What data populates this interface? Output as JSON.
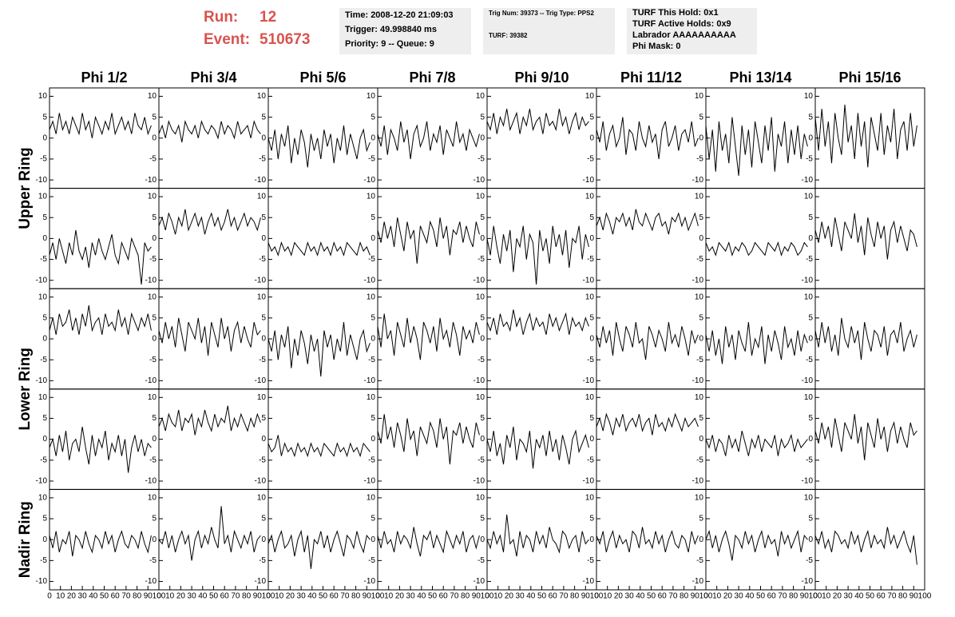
{
  "header": {
    "run_label": "Run:",
    "run": 12,
    "event_label": "Event:",
    "event": 510673,
    "box1": [
      "Time: 2008-12-20 21:09:03",
      "Trigger: 49.998840 ms",
      "Priority: 9 -- Queue: 9"
    ],
    "box2": [
      "Trig Num: 39373 -- Trig Type: PPS2",
      "TURF: 39382"
    ],
    "box3": [
      "TURF This Hold: 0x1",
      "TURF Active Holds: 0x9",
      "Labrador AAAAAAAAAA",
      "Phi Mask: 0"
    ]
  },
  "chart_data": {
    "type": "line",
    "color": "#000000",
    "columns": [
      "Phi 1/2",
      "Phi 3/4",
      "Phi 5/6",
      "Phi 7/8",
      "Phi 9/10",
      "Phi 11/12",
      "Phi 13/14",
      "Phi 15/16"
    ],
    "row_labels": [
      "Upper Ring",
      "Lower Ring",
      "Nadir Ring"
    ],
    "xlim": [
      0,
      100
    ],
    "ylim": [
      -12,
      12
    ],
    "xticks": [
      0,
      10,
      20,
      30,
      40,
      50,
      60,
      70,
      80,
      90,
      100
    ],
    "yticks": [
      -10,
      -5,
      0,
      5,
      10
    ],
    "x": [
      0,
      3,
      6,
      9,
      12,
      15,
      18,
      21,
      24,
      27,
      30,
      33,
      36,
      39,
      42,
      45,
      48,
      51,
      54,
      57,
      60,
      63,
      66,
      69,
      72,
      75,
      78,
      81,
      84,
      87,
      90,
      93
    ],
    "rows": [
      [
        [
          2,
          4,
          1,
          6,
          2,
          4,
          1,
          5,
          3,
          1,
          6,
          2,
          4,
          0,
          5,
          3,
          1,
          4,
          2,
          6,
          1,
          3,
          5,
          2,
          4,
          1,
          6,
          3,
          2,
          5,
          1,
          3
        ],
        [
          1,
          3,
          0,
          4,
          2,
          1,
          3,
          -1,
          4,
          2,
          1,
          3,
          0,
          4,
          2,
          1,
          3,
          2,
          0,
          4,
          1,
          3,
          2,
          0,
          4,
          1,
          2,
          3,
          0,
          4,
          2,
          1
        ],
        [
          0,
          -3,
          2,
          -5,
          1,
          -2,
          3,
          -6,
          0,
          -4,
          2,
          -1,
          -7,
          1,
          -3,
          0,
          -5,
          2,
          -2,
          1,
          -6,
          0,
          -3,
          3,
          -4,
          1,
          -2,
          -5,
          0,
          2,
          -3,
          -1
        ],
        [
          1,
          -2,
          3,
          -4,
          2,
          0,
          -3,
          4,
          -1,
          2,
          -5,
          1,
          3,
          -2,
          0,
          4,
          -3,
          1,
          -1,
          3,
          -4,
          2,
          0,
          -2,
          4,
          -1,
          1,
          -3,
          2,
          0,
          -2,
          1
        ],
        [
          4,
          2,
          6,
          1,
          5,
          3,
          7,
          2,
          4,
          6,
          1,
          5,
          3,
          7,
          2,
          4,
          5,
          1,
          6,
          3,
          4,
          2,
          7,
          3,
          5,
          1,
          4,
          6,
          2,
          5,
          3,
          4
        ],
        [
          2,
          -1,
          4,
          -3,
          1,
          3,
          -2,
          0,
          5,
          -4,
          2,
          1,
          -3,
          4,
          0,
          -2,
          3,
          -1,
          1,
          -5,
          2,
          4,
          -2,
          0,
          3,
          -3,
          1,
          2,
          -1,
          4,
          -2,
          0
        ],
        [
          3,
          -5,
          2,
          -8,
          4,
          -3,
          1,
          -6,
          5,
          -2,
          -9,
          3,
          -4,
          2,
          -7,
          4,
          -1,
          -6,
          3,
          -3,
          5,
          -8,
          1,
          -2,
          4,
          -6,
          2,
          -4,
          3,
          -5,
          1,
          -2
        ],
        [
          5,
          -3,
          7,
          -2,
          4,
          -6,
          6,
          0,
          -4,
          8,
          -1,
          3,
          -5,
          6,
          -2,
          4,
          -7,
          5,
          1,
          -3,
          6,
          -4,
          3,
          -1,
          7,
          -5,
          2,
          4,
          -3,
          6,
          -2,
          3
        ]
      ],
      [
        [
          -4,
          -1,
          -5,
          0,
          -3,
          -6,
          -1,
          -4,
          2,
          -3,
          -5,
          -2,
          -7,
          -1,
          -4,
          0,
          -3,
          -5,
          -2,
          1,
          -4,
          -6,
          -1,
          -3,
          -5,
          0,
          -2,
          -4,
          -11,
          -1,
          -3,
          -2
        ],
        [
          3,
          5,
          2,
          6,
          4,
          1,
          5,
          3,
          7,
          2,
          4,
          6,
          3,
          5,
          1,
          4,
          6,
          3,
          5,
          2,
          4,
          7,
          3,
          5,
          2,
          4,
          6,
          3,
          5,
          4,
          2,
          5
        ],
        [
          -1,
          -3,
          -2,
          -4,
          -1,
          -3,
          -2,
          -4,
          -1,
          -2,
          -3,
          -4,
          -1,
          -3,
          -2,
          -4,
          -1,
          -3,
          -2,
          -4,
          -1,
          -3,
          -2,
          -4,
          -1,
          -2,
          -3,
          -4,
          -1,
          -3,
          -2,
          -4
        ],
        [
          2,
          -1,
          4,
          0,
          3,
          -2,
          5,
          1,
          -3,
          4,
          0,
          2,
          -6,
          3,
          1,
          -1,
          4,
          2,
          -2,
          5,
          0,
          3,
          -4,
          2,
          1,
          4,
          -1,
          3,
          0,
          -2,
          4,
          1
        ],
        [
          0,
          -4,
          3,
          -2,
          -6,
          1,
          -3,
          2,
          -8,
          0,
          -2,
          3,
          -5,
          1,
          -1,
          -11,
          2,
          -3,
          0,
          -6,
          3,
          -2,
          1,
          -4,
          2,
          -7,
          0,
          -1,
          3,
          -5,
          1,
          -2
        ],
        [
          3,
          5,
          2,
          6,
          4,
          1,
          5,
          4,
          6,
          3,
          5,
          2,
          7,
          4,
          3,
          6,
          4,
          2,
          5,
          6,
          3,
          4,
          1,
          5,
          4,
          6,
          3,
          5,
          2,
          4,
          6,
          3
        ],
        [
          -1,
          -3,
          -2,
          -4,
          -1,
          -2,
          -3,
          -1,
          -4,
          -2,
          -3,
          -1,
          -2,
          -4,
          -3,
          -1,
          -2,
          -3,
          -4,
          -1,
          -2,
          -3,
          -1,
          -4,
          -2,
          -3,
          -1,
          -2,
          -4,
          -3,
          -1,
          -2
        ],
        [
          2,
          -1,
          4,
          0,
          3,
          -2,
          5,
          1,
          -3,
          4,
          2,
          0,
          6,
          -1,
          3,
          -4,
          5,
          1,
          -2,
          4,
          0,
          3,
          -5,
          2,
          4,
          -1,
          3,
          0,
          -3,
          2,
          1,
          -2
        ]
      ],
      [
        [
          2,
          5,
          1,
          6,
          3,
          4,
          7,
          2,
          5,
          1,
          6,
          3,
          8,
          2,
          4,
          5,
          1,
          6,
          3,
          4,
          2,
          7,
          3,
          5,
          1,
          6,
          4,
          2,
          5,
          3,
          6,
          2
        ],
        [
          2,
          -1,
          4,
          0,
          3,
          -2,
          5,
          1,
          -3,
          4,
          2,
          0,
          5,
          -1,
          3,
          -4,
          4,
          1,
          -2,
          5,
          0,
          3,
          -3,
          2,
          4,
          -1,
          3,
          0,
          -2,
          4,
          1,
          2
        ],
        [
          0,
          -3,
          2,
          -5,
          1,
          -2,
          3,
          -7,
          0,
          -4,
          2,
          -1,
          -6,
          1,
          -3,
          0,
          -9,
          2,
          -2,
          1,
          -5,
          0,
          -3,
          4,
          -4,
          1,
          -2,
          -5,
          0,
          2,
          -3,
          -1
        ],
        [
          3,
          -2,
          6,
          0,
          2,
          -4,
          4,
          1,
          -2,
          5,
          -1,
          3,
          0,
          -5,
          4,
          2,
          -1,
          3,
          -3,
          5,
          0,
          2,
          -2,
          4,
          1,
          -4,
          3,
          0,
          2,
          -1,
          4,
          1
        ],
        [
          4,
          2,
          5,
          1,
          6,
          3,
          4,
          2,
          7,
          3,
          5,
          1,
          4,
          6,
          2,
          5,
          3,
          4,
          1,
          6,
          3,
          5,
          2,
          4,
          6,
          1,
          5,
          3,
          4,
          2,
          5,
          3
        ],
        [
          1,
          -2,
          3,
          -1,
          2,
          -4,
          4,
          0,
          -3,
          3,
          1,
          -2,
          4,
          -1,
          0,
          -5,
          3,
          1,
          -2,
          2,
          0,
          -3,
          4,
          -1,
          1,
          -2,
          3,
          0,
          -4,
          2,
          -1,
          1
        ],
        [
          1,
          -3,
          2,
          -4,
          0,
          -6,
          3,
          -2,
          1,
          -5,
          2,
          -1,
          -3,
          4,
          -4,
          0,
          -2,
          3,
          -6,
          1,
          -3,
          2,
          -1,
          -5,
          3,
          -2,
          0,
          -4,
          2,
          -3,
          1,
          -1
        ],
        [
          2,
          -2,
          4,
          -1,
          3,
          -3,
          1,
          -4,
          5,
          0,
          -2,
          3,
          -1,
          2,
          -5,
          4,
          0,
          -3,
          2,
          1,
          -2,
          3,
          -4,
          1,
          2,
          -1,
          4,
          -3,
          0,
          2,
          -2,
          1
        ]
      ],
      [
        [
          -2,
          0,
          -4,
          1,
          -3,
          2,
          -5,
          -1,
          0,
          -3,
          3,
          -2,
          -6,
          1,
          -4,
          0,
          -2,
          2,
          -5,
          -1,
          -3,
          1,
          -4,
          0,
          -8,
          -2,
          1,
          -3,
          0,
          -4,
          -1,
          -2
        ],
        [
          3,
          5,
          2,
          6,
          4,
          3,
          7,
          2,
          5,
          4,
          6,
          1,
          5,
          3,
          7,
          4,
          2,
          6,
          3,
          5,
          4,
          8,
          2,
          5,
          3,
          6,
          4,
          2,
          5,
          3,
          6,
          4
        ],
        [
          -1,
          -3,
          -2,
          1,
          -4,
          -1,
          -3,
          -2,
          -4,
          -1,
          -3,
          -2,
          -4,
          -1,
          -3,
          -2,
          -4,
          -1,
          -2,
          -3,
          -4,
          -1,
          -3,
          -2,
          -4,
          -1,
          -3,
          -2,
          -4,
          -1,
          -2,
          -3
        ],
        [
          2,
          -1,
          6,
          0,
          3,
          -2,
          4,
          1,
          -3,
          5,
          0,
          2,
          -4,
          3,
          1,
          -1,
          4,
          2,
          -2,
          5,
          0,
          3,
          -6,
          2,
          1,
          4,
          -1,
          3,
          0,
          -2,
          4,
          1
        ],
        [
          0,
          -3,
          2,
          -4,
          -1,
          -6,
          1,
          -2,
          3,
          -5,
          0,
          -1,
          -3,
          2,
          -7,
          0,
          -2,
          1,
          -4,
          2,
          -3,
          0,
          -5,
          1,
          -2,
          -6,
          0,
          2,
          -3,
          -1,
          1,
          -2
        ],
        [
          3,
          5,
          2,
          6,
          4,
          1,
          5,
          3,
          6,
          2,
          4,
          5,
          3,
          6,
          2,
          4,
          5,
          1,
          6,
          3,
          4,
          2,
          5,
          3,
          6,
          4,
          2,
          5,
          3,
          4,
          5,
          3
        ],
        [
          0,
          -2,
          1,
          -3,
          0,
          -1,
          -4,
          1,
          -2,
          0,
          -3,
          2,
          -1,
          -4,
          0,
          -2,
          1,
          -3,
          0,
          -1,
          -2,
          1,
          -4,
          0,
          -2,
          -1,
          1,
          -3,
          0,
          -2,
          -1,
          0
        ],
        [
          2,
          -1,
          4,
          0,
          3,
          -2,
          5,
          1,
          -3,
          4,
          2,
          0,
          6,
          -1,
          3,
          -5,
          4,
          1,
          -2,
          5,
          0,
          3,
          -3,
          2,
          4,
          -1,
          3,
          0,
          -2,
          4,
          1,
          2
        ]
      ],
      [
        [
          1,
          -2,
          2,
          -3,
          0,
          -1,
          2,
          -4,
          1,
          0,
          -2,
          2,
          -1,
          -3,
          1,
          0,
          -2,
          2,
          -1,
          1,
          -3,
          0,
          2,
          -1,
          -2,
          1,
          0,
          -2,
          2,
          -1,
          -3,
          1
        ],
        [
          0,
          -1,
          2,
          -2,
          1,
          -3,
          0,
          2,
          -1,
          1,
          -5,
          0,
          2,
          -2,
          1,
          -1,
          3,
          0,
          -2,
          8,
          -1,
          1,
          -3,
          2,
          0,
          -2,
          1,
          -1,
          2,
          -3,
          0,
          1
        ],
        [
          -1,
          1,
          -3,
          0,
          2,
          -2,
          -1,
          1,
          -4,
          0,
          2,
          -3,
          1,
          -7,
          0,
          -1,
          2,
          -2,
          1,
          -3,
          0,
          2,
          -1,
          -4,
          1,
          0,
          -2,
          2,
          -1,
          -3,
          1,
          0
        ],
        [
          1,
          -2,
          2,
          -1,
          0,
          -3,
          2,
          -1,
          1,
          0,
          -2,
          3,
          -1,
          -4,
          1,
          0,
          2,
          -2,
          1,
          -1,
          -3,
          2,
          0,
          -2,
          1,
          -1,
          2,
          -3,
          0,
          1,
          -2,
          1
        ],
        [
          0,
          -2,
          2,
          -1,
          1,
          -3,
          6,
          -1,
          0,
          -4,
          2,
          -2,
          1,
          0,
          -3,
          2,
          -1,
          1,
          -2,
          3,
          0,
          -1,
          -3,
          2,
          1,
          -2,
          0,
          1,
          -3,
          2,
          -1,
          0
        ],
        [
          1,
          -1,
          2,
          -3,
          0,
          2,
          -2,
          1,
          -1,
          0,
          -3,
          2,
          1,
          -2,
          3,
          -1,
          0,
          -2,
          2,
          -1,
          1,
          -3,
          0,
          2,
          -1,
          -2,
          1,
          0,
          -3,
          2,
          -1,
          1
        ],
        [
          0,
          2,
          -2,
          1,
          -3,
          0,
          2,
          -1,
          -5,
          1,
          0,
          -2,
          2,
          -1,
          1,
          -3,
          0,
          2,
          -2,
          1,
          -1,
          0,
          -4,
          2,
          -1,
          1,
          -2,
          0,
          2,
          -3,
          1,
          0
        ],
        [
          1,
          -1,
          2,
          -2,
          0,
          -3,
          2,
          1,
          -1,
          0,
          -2,
          2,
          -1,
          1,
          -3,
          0,
          2,
          -2,
          1,
          -1,
          0,
          -2,
          3,
          -1,
          1,
          -2,
          0,
          2,
          -1,
          -3,
          1,
          -6
        ]
      ]
    ]
  }
}
